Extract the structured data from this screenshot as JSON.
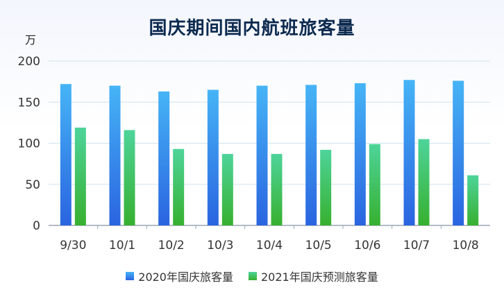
{
  "chart_data": {
    "type": "bar",
    "title": "国庆期间国内航班旅客量",
    "unit": "万",
    "categories": [
      "9/30",
      "10/1",
      "10/2",
      "10/3",
      "10/4",
      "10/5",
      "10/6",
      "10/7",
      "10/8"
    ],
    "series": [
      {
        "name": "2020年国庆旅客量",
        "values": [
          172,
          170,
          163,
          165,
          170,
          171,
          173,
          177,
          176
        ],
        "color": "#3a8ff0"
      },
      {
        "name": "2021年国庆预测旅客量",
        "values": [
          119,
          116,
          93,
          87,
          87,
          92,
          99,
          105,
          61
        ],
        "color": "#3ec46d"
      }
    ],
    "yticks": [
      0,
      50,
      100,
      150,
      200
    ],
    "ylim": [
      0,
      200
    ],
    "grid": true,
    "legend_position": "bottom"
  }
}
